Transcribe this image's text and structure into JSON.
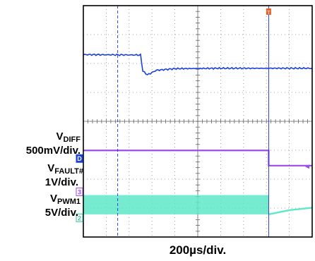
{
  "chart_data": {
    "type": "line",
    "title": "",
    "xlabel": "200µs/div.",
    "grid": true,
    "xlim": [
      0,
      2000
    ],
    "x_unit": "µs",
    "cursor_times": [
      300,
      1620
    ],
    "trigger_marker_time": 1620,
    "series": [
      {
        "name": "V_DIFF",
        "marker": "D",
        "scale": "500mV/div.",
        "color": "#1a3fdc",
        "points": [
          [
            0,
            0.82
          ],
          [
            500,
            0.81
          ],
          [
            520,
            0.4
          ],
          [
            560,
            0.3
          ],
          [
            640,
            0.42
          ],
          [
            800,
            0.46
          ],
          [
            1200,
            0.47
          ],
          [
            2000,
            0.47
          ]
        ]
      },
      {
        "name": "V_FAULT#",
        "marker": "3",
        "scale": "1V/div.",
        "color": "#9a4de8",
        "points": [
          [
            0,
            3.05
          ],
          [
            1620,
            3.05
          ],
          [
            1620,
            1.9
          ],
          [
            2000,
            1.9
          ]
        ]
      },
      {
        "name": "V_PWM1",
        "marker": "2",
        "scale": "5V/div.",
        "color": "#5fe8c8",
        "switching_band": [
          [
            0,
            1620
          ],
          [
            0.2,
            1.8
          ]
        ],
        "points": [
          [
            1620,
            0.2
          ],
          [
            1800,
            0.55
          ],
          [
            2000,
            0.75
          ]
        ]
      }
    ]
  },
  "labels": {
    "vdiff_main": "V",
    "vdiff_sub": "DIFF",
    "vdiff_scale": "500mV/div.",
    "vfault_main": "V",
    "vfault_sub": "FAULT#",
    "vfault_scale": "1V/div.",
    "vpwm_main": "V",
    "vpwm_sub": "PWM1",
    "vpwm_scale": "5V/div."
  },
  "marker_texts": {
    "ch_d": "D",
    "ch_3": "3",
    "ch_2": "2",
    "trigger": "T"
  }
}
